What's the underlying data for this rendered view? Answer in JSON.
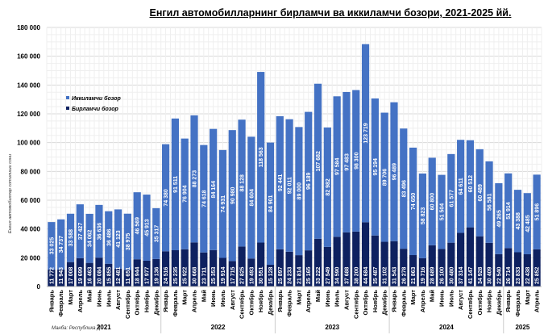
{
  "chart_data": {
    "type": "bar",
    "stacked": true,
    "title": "Енгил автомобилларнинг бирламчи ва иккиламчи бозори, 2021-2025 йй.",
    "ylabel": "Енгил автомобиллар сотилиши сони",
    "source": "Манба: Республика Д",
    "ylim": [
      0,
      180000
    ],
    "yticks": [
      "0",
      "20 000",
      "40 000",
      "60 000",
      "80 000",
      "100 000",
      "120 000",
      "140 000",
      "160 000",
      "180 000"
    ],
    "legend_position": "top-left",
    "colors": {
      "secondary": "#4472C4",
      "primary": "#0E2160"
    },
    "years": [
      {
        "label": "2021",
        "count": 12
      },
      {
        "label": "2022",
        "count": 12
      },
      {
        "label": "2023",
        "count": 12
      },
      {
        "label": "2024",
        "count": 12
      },
      {
        "label": "2025",
        "count": 4
      }
    ],
    "categories": [
      "Январь",
      "Февраль",
      "Март",
      "Апрель",
      "Май",
      "Июнь",
      "Июль",
      "Август",
      "Сентябрь",
      "Октябрь",
      "Ноябрь",
      "Декабрь",
      "Январь",
      "Февраль",
      "Март",
      "Апрель",
      "Май",
      "Июнь",
      "Июль",
      "Август",
      "Сентябрь",
      "Октябрь",
      "Ноябрь",
      "Декабрь",
      "Январь",
      "Февраль",
      "Март",
      "Апрель",
      "Май",
      "Июнь",
      "Июль",
      "Август",
      "Сентябрь",
      "Октябрь",
      "Ноябрь",
      "Декабрь",
      "Январь",
      "Февраль",
      "Март",
      "Апрель",
      "Май",
      "Июнь",
      "Июль",
      "Август",
      "Сентябрь",
      "Октябрь",
      "Ноябрь",
      "Декабрь",
      "Январь",
      "Февраль",
      "Март",
      "Апрель"
    ],
    "series": [
      {
        "name": "Бирламчи бозор",
        "values": [
          11772,
          11943,
          17008,
          19699,
          16463,
          20084,
          15855,
          12481,
          11651,
          18944,
          17977,
          19136,
          24516,
          25235,
          25922,
          30668,
          23711,
          25353,
          19914,
          17715,
          27825,
          19493,
          30551,
          15128,
          25897,
          24233,
          21814,
          25165,
          33222,
          27549,
          34590,
          37688,
          38200,
          44684,
          35487,
          31102,
          31543,
          26278,
          21863,
          19716,
          28689,
          26100,
          30480,
          37314,
          41147,
          34928,
          30409,
          22540,
          26714,
          23833,
          22438,
          25852
        ]
      },
      {
        "name": "Иккиламчи бозор",
        "values": [
          33025,
          34737,
          33588,
          37427,
          34062,
          36636,
          36486,
          41123,
          38975,
          46569,
          45913,
          35317,
          74380,
          91511,
          76904,
          88273,
          74618,
          84164,
          74931,
          90980,
          88128,
          84604,
          118563,
          84901,
          92441,
          92011,
          89000,
          96189,
          107682,
          82982,
          97584,
          97483,
          98300,
          123719,
          95194,
          89706,
          96489,
          83496,
          74650,
          58823,
          60800,
          51504,
          61577,
          64611,
          60512,
          60489,
          56581,
          49265,
          51914,
          43388,
          42485,
          51896
        ]
      }
    ]
  }
}
